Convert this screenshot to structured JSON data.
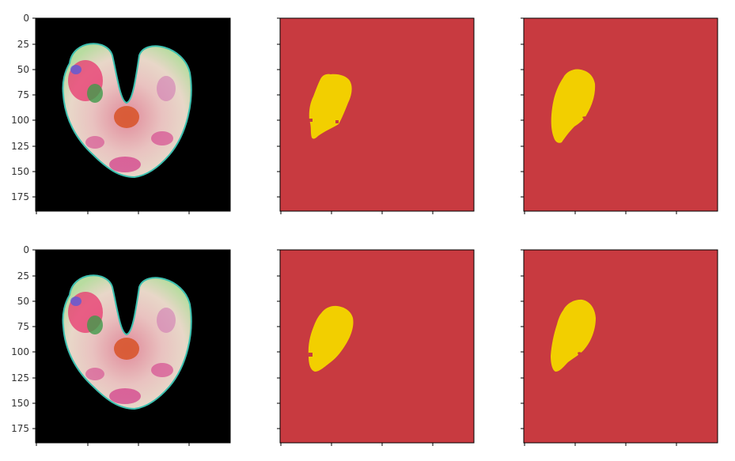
{
  "figure": {
    "layout": "2 rows x 3 columns of image panels",
    "background": "#ffffff"
  },
  "chart_data": [
    {
      "type": "heatmap",
      "content": "brain MRI slice (false color)",
      "row": 1,
      "col": 1,
      "y_ticks": [
        "0",
        "25",
        "50",
        "75",
        "100",
        "125",
        "150",
        "175"
      ],
      "x_tick_labels_shown": false
    },
    {
      "type": "heatmap",
      "content": "segmentation mask",
      "row": 1,
      "col": 2,
      "y_tick_labels_shown": false
    },
    {
      "type": "heatmap",
      "content": "segmentation mask",
      "row": 1,
      "col": 3,
      "y_tick_labels_shown": false
    },
    {
      "type": "heatmap",
      "content": "brain MRI slice (false color)",
      "row": 2,
      "col": 1,
      "y_ticks": [
        "0",
        "25",
        "50",
        "75",
        "100",
        "125",
        "150",
        "175"
      ],
      "x_tick_labels_shown": false
    },
    {
      "type": "heatmap",
      "content": "segmentation mask",
      "row": 2,
      "col": 2,
      "y_tick_labels_shown": false
    },
    {
      "type": "heatmap",
      "content": "segmentation mask",
      "row": 2,
      "col": 3,
      "y_tick_labels_shown": false
    }
  ],
  "colors": {
    "mask_background": "#c83a40",
    "mask_foreground": "#f2cf00",
    "mri_background": "#000000",
    "axis": "#000000",
    "tick_text": "#333333"
  }
}
